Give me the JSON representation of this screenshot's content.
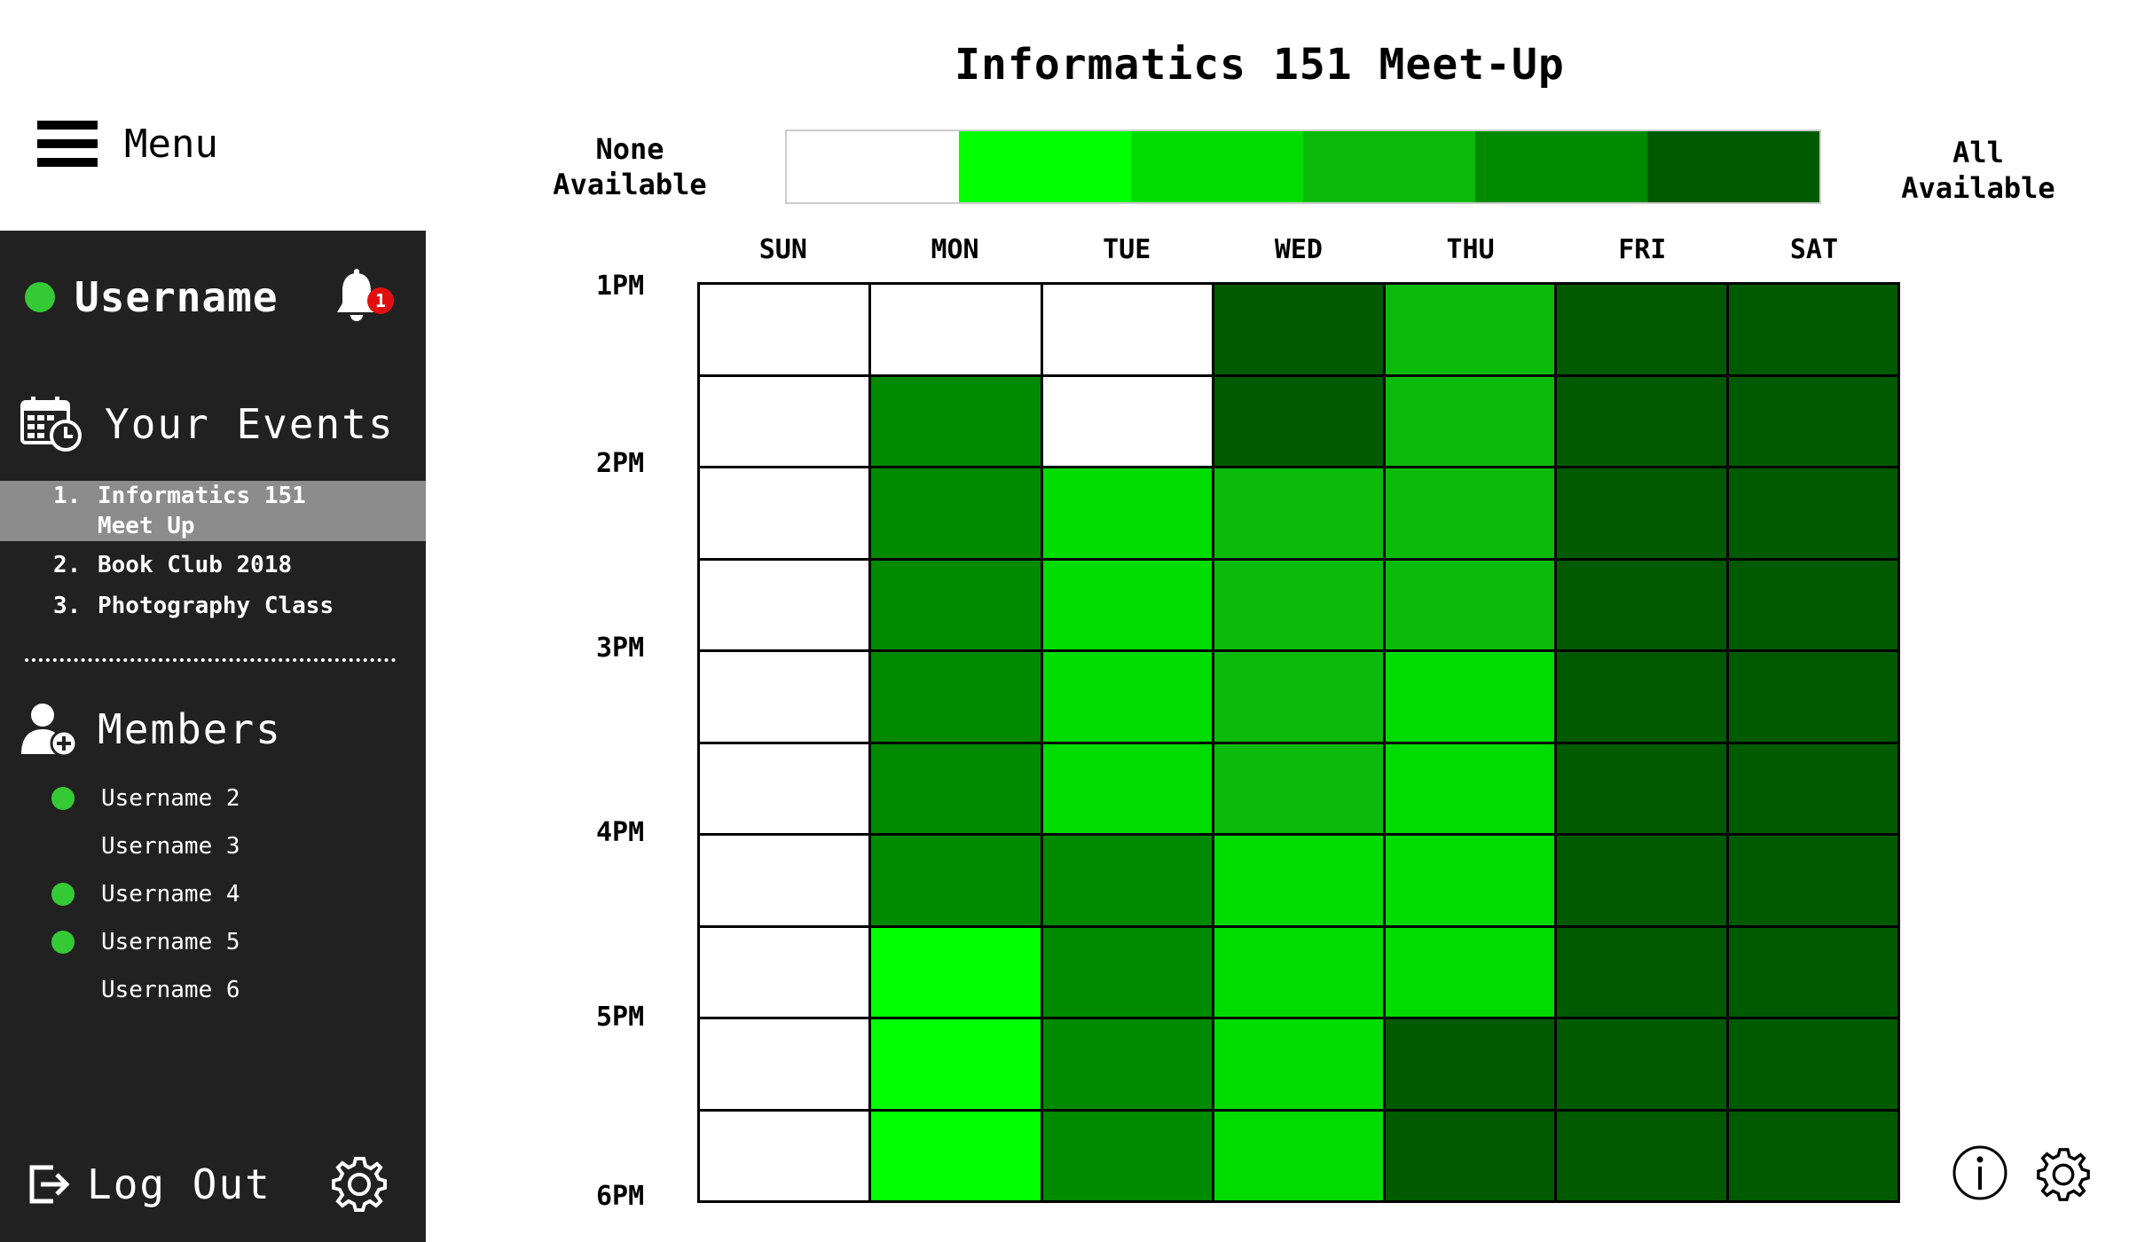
{
  "menu": {
    "label": "Menu",
    "icon": "hamburger-icon"
  },
  "sidebar": {
    "user": {
      "name": "Username",
      "online": true,
      "notifications": "1"
    },
    "events": {
      "heading": "Your Events",
      "items": [
        {
          "num": "1.",
          "label": "Informatics 151\nMeet Up",
          "selected": true
        },
        {
          "num": "2.",
          "label": "Book Club 2018",
          "selected": false
        },
        {
          "num": "3.",
          "label": "Photography Class",
          "selected": false
        }
      ]
    },
    "members": {
      "heading": "Members",
      "items": [
        {
          "name": "Username 2",
          "online": true
        },
        {
          "name": "Username 3",
          "online": false
        },
        {
          "name": "Username 4",
          "online": true
        },
        {
          "name": "Username 5",
          "online": true
        },
        {
          "name": "Username 6",
          "online": false
        }
      ]
    },
    "logout": "Log Out"
  },
  "main": {
    "title": "Informatics 151 Meet-Up",
    "legend": {
      "low": "None\nAvailable",
      "high": "All\nAvailable",
      "colors": [
        "#ffffff",
        "#00ff00",
        "#00dc00",
        "#0abb0a",
        "#008a00",
        "#005a00"
      ]
    },
    "days": [
      "SUN",
      "MON",
      "TUE",
      "WED",
      "THU",
      "FRI",
      "SAT"
    ],
    "times": [
      "1PM",
      "2PM",
      "3PM",
      "4PM",
      "5PM",
      "6PM"
    ],
    "availability_levels": [
      [
        0,
        0,
        0,
        5,
        3,
        5,
        5
      ],
      [
        0,
        4,
        0,
        5,
        3,
        5,
        5
      ],
      [
        0,
        4,
        2,
        3,
        3,
        5,
        5
      ],
      [
        0,
        4,
        2,
        3,
        3,
        5,
        5
      ],
      [
        0,
        4,
        2,
        3,
        2,
        5,
        5
      ],
      [
        0,
        4,
        2,
        3,
        2,
        5,
        5
      ],
      [
        0,
        4,
        4,
        2,
        2,
        5,
        5
      ],
      [
        0,
        1,
        4,
        2,
        2,
        5,
        5
      ],
      [
        0,
        1,
        4,
        2,
        5,
        5,
        5
      ],
      [
        0,
        1,
        4,
        2,
        5,
        5,
        5
      ]
    ]
  }
}
